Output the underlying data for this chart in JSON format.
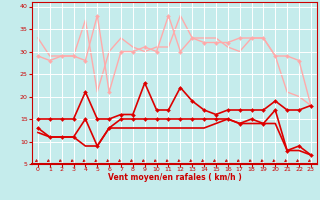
{
  "xlabel": "Vent moyen/en rafales ( km/h )",
  "xlim": [
    -0.5,
    23.5
  ],
  "ylim": [
    5,
    41
  ],
  "yticks": [
    5,
    10,
    15,
    20,
    25,
    30,
    35,
    40
  ],
  "xticks": [
    0,
    1,
    2,
    3,
    4,
    5,
    6,
    7,
    8,
    9,
    10,
    11,
    12,
    13,
    14,
    15,
    16,
    17,
    18,
    19,
    20,
    21,
    22,
    23
  ],
  "bg_color": "#c5ecec",
  "grid_color": "#ffffff",
  "series": [
    {
      "y": [
        33,
        29,
        29,
        29,
        37,
        21,
        30,
        33,
        31,
        30,
        31,
        31,
        38,
        33,
        33,
        33,
        31,
        30,
        33,
        33,
        29,
        21,
        20,
        18
      ],
      "color": "#ffaaaa",
      "linewidth": 1.0,
      "marker": null,
      "zorder": 1
    },
    {
      "y": [
        29,
        28,
        29,
        29,
        28,
        38,
        21,
        30,
        30,
        31,
        30,
        38,
        30,
        33,
        32,
        32,
        32,
        33,
        33,
        33,
        29,
        29,
        28,
        18
      ],
      "color": "#ffaaaa",
      "linewidth": 1.0,
      "marker": "D",
      "markersize": 2.0,
      "zorder": 2
    },
    {
      "y": [
        15,
        15,
        15,
        15,
        21,
        15,
        15,
        16,
        16,
        23,
        17,
        17,
        22,
        19,
        17,
        16,
        17,
        17,
        17,
        17,
        19,
        17,
        17,
        18
      ],
      "color": "#dd0000",
      "linewidth": 1.2,
      "marker": "D",
      "markersize": 2.0,
      "zorder": 3
    },
    {
      "y": [
        13,
        11,
        11,
        11,
        15,
        9,
        13,
        15,
        15,
        15,
        15,
        15,
        15,
        15,
        15,
        15,
        15,
        14,
        15,
        14,
        17,
        8,
        9,
        7
      ],
      "color": "#dd0000",
      "linewidth": 1.2,
      "marker": "D",
      "markersize": 2.0,
      "zorder": 3
    },
    {
      "y": [
        12,
        11,
        11,
        11,
        9,
        9,
        13,
        13,
        13,
        13,
        13,
        13,
        13,
        13,
        13,
        14,
        15,
        14,
        14,
        14,
        14,
        8,
        8,
        7
      ],
      "color": "#dd0000",
      "linewidth": 1.2,
      "marker": null,
      "zorder": 2
    }
  ],
  "arrow_color": "#cc0000"
}
